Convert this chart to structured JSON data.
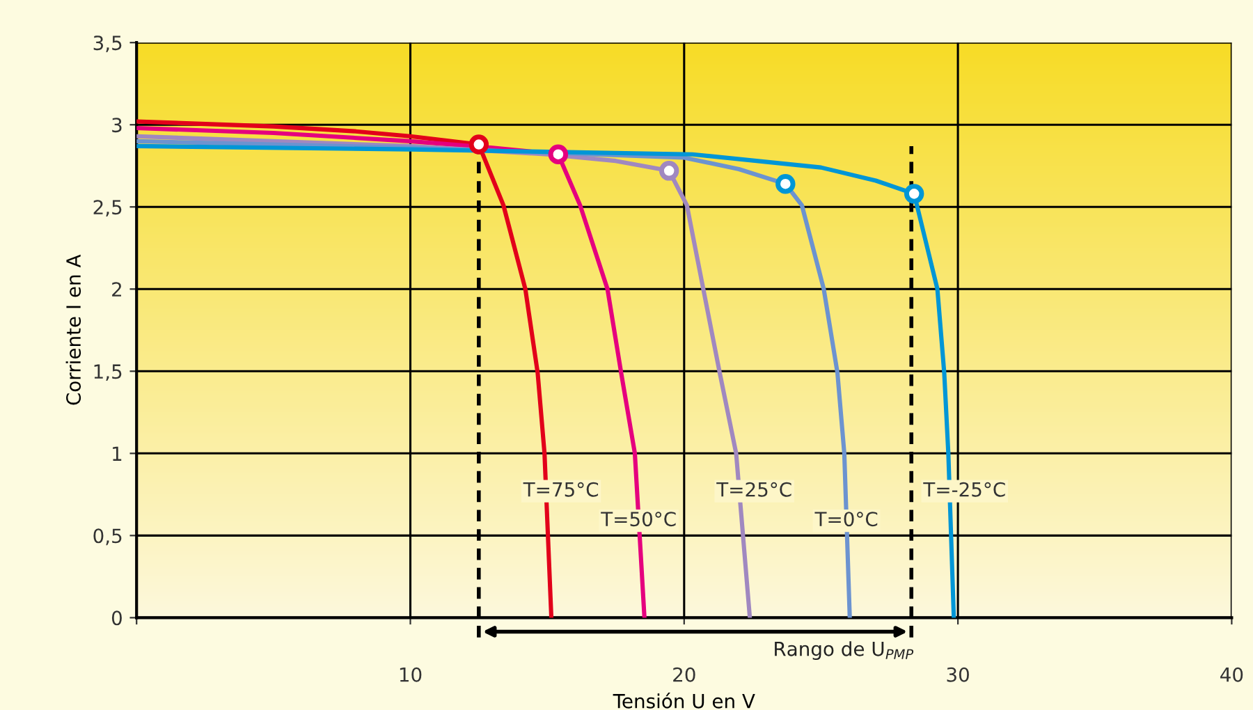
{
  "chart_data": {
    "type": "line",
    "xlabel": "Tensión U en V",
    "ylabel": "Corriente I en A",
    "xlim": [
      0,
      40
    ],
    "xticks": [
      {
        "value": 0,
        "label": null
      },
      10,
      20,
      30,
      40
    ],
    "ylim": [
      0,
      3.5
    ],
    "yticks": [
      0,
      {
        "value": 0.5,
        "label": "0,5"
      },
      1,
      {
        "value": 1.5,
        "label": "1,5"
      },
      2,
      {
        "value": 2.5,
        "label": "2,5"
      },
      3,
      {
        "value": 3.5,
        "label": "3,5"
      }
    ],
    "grid": true,
    "marker": "none",
    "line_style": "solid",
    "series": [
      {
        "name": "T=75°C",
        "color": "#e2001a",
        "x": [
          0,
          5,
          8,
          10,
          12.5,
          13.4,
          14.2,
          14.65,
          14.9,
          15.15
        ],
        "values": [
          3.02,
          2.99,
          2.96,
          2.93,
          2.88,
          2.51,
          2.0,
          1.49,
          1.0,
          0
        ]
      },
      {
        "name": "T=50°C",
        "color": "#e5007e",
        "x": [
          0,
          5,
          10,
          13,
          15.4,
          16.2,
          17.2,
          17.7,
          18.2,
          18.55
        ],
        "values": [
          2.98,
          2.95,
          2.9,
          2.86,
          2.82,
          2.51,
          2.0,
          1.49,
          1.0,
          0
        ]
      },
      {
        "name": "T=25°C",
        "color": "#a088c0",
        "x": [
          0,
          5,
          10,
          15,
          17.5,
          19.45,
          20.1,
          20.7,
          21.3,
          21.9,
          22.4
        ],
        "values": [
          2.93,
          2.9,
          2.87,
          2.82,
          2.78,
          2.72,
          2.51,
          2.0,
          1.49,
          1.0,
          0
        ]
      },
      {
        "name": "T=0°C",
        "color": "#6c93d0",
        "x": [
          0,
          10,
          20,
          22,
          23.7,
          24.3,
          25.1,
          25.6,
          25.85,
          26.05
        ],
        "values": [
          2.9,
          2.86,
          2.8,
          2.73,
          2.64,
          2.51,
          2.0,
          1.49,
          1.0,
          0
        ]
      },
      {
        "name": "T=-25°C",
        "color": "#0096d6",
        "x": [
          0,
          10,
          20.3,
          25,
          27,
          28.4,
          29.25,
          29.5,
          29.65,
          29.85
        ],
        "values": [
          2.87,
          2.85,
          2.82,
          2.74,
          2.66,
          2.58,
          2.0,
          1.49,
          1.0,
          0
        ]
      },
      {
        "type": "scatter",
        "marker": "circle",
        "x": [
          12.5,
          15.4,
          19.45,
          23.7,
          28.4
        ],
        "values": [
          2.88,
          2.82,
          2.72,
          2.64,
          2.58
        ],
        "colors": [
          "#e2001a",
          "#e5007e",
          "#a088c0",
          "#0096d6",
          "#0096d6"
        ]
      }
    ],
    "ref_lines": [
      {
        "axis": "x",
        "value": 12.5,
        "color": "#000000",
        "line_style": "dashed"
      },
      {
        "axis": "x",
        "value": 28.3,
        "color": "#000000",
        "line_style": "dashed"
      }
    ],
    "annotations": [
      "Rango de U$_{PMP}$"
    ]
  }
}
